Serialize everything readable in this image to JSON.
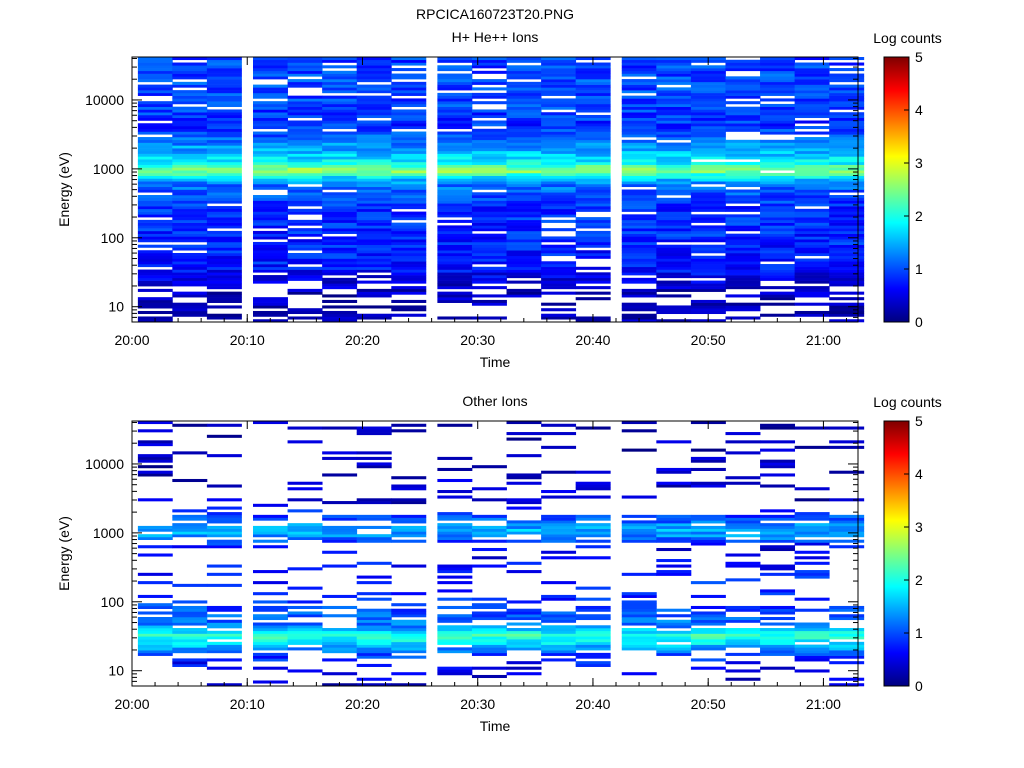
{
  "figure": {
    "title": "RPCICA160723T20.PNG"
  },
  "colors": {
    "colormap": [
      "#00007f",
      "#0000ff",
      "#007fff",
      "#00ffff",
      "#7fff7f",
      "#ffff00",
      "#ff7f00",
      "#ff0000",
      "#7f0000"
    ],
    "background": "#ffffff"
  },
  "chart_data": [
    {
      "type": "heatmap",
      "title": "H+ He++ Ions",
      "xlabel": "Time",
      "ylabel": "Energy (eV)",
      "y_scale": "log",
      "ylim": [
        6,
        42000
      ],
      "x_range": [
        "20:00",
        "21:03"
      ],
      "x_ticks": [
        "20:00",
        "20:10",
        "20:20",
        "20:30",
        "20:40",
        "20:50",
        "21:00"
      ],
      "y_ticks": [
        "10",
        "100",
        "1000",
        "10000"
      ],
      "colorbar": {
        "label": "Log counts",
        "range": [
          0,
          5
        ],
        "ticks": [
          "0",
          "1",
          "2",
          "3",
          "4",
          "5"
        ]
      },
      "time_bins": [
        "20:02",
        "20:05",
        "20:08",
        "20:12",
        "20:15",
        "20:18",
        "20:21",
        "20:24",
        "20:28",
        "20:31",
        "20:34",
        "20:37",
        "20:40",
        "20:44",
        "20:47",
        "20:50",
        "20:53",
        "20:56",
        "20:59",
        "21:02"
      ],
      "profile": [
        {
          "energy": 40000,
          "log_counts": 0.9
        },
        {
          "energy": 20000,
          "log_counts": 1.0
        },
        {
          "energy": 10000,
          "log_counts": 0.95
        },
        {
          "energy": 4000,
          "log_counts": 0.85
        },
        {
          "energy": 2000,
          "log_counts": 1.4
        },
        {
          "energy": 1200,
          "log_counts": 1.9
        },
        {
          "energy": 950,
          "log_counts": 2.7
        },
        {
          "energy": 800,
          "log_counts": 1.9
        },
        {
          "energy": 600,
          "log_counts": 1.2
        },
        {
          "energy": 300,
          "log_counts": 0.85
        },
        {
          "energy": 100,
          "log_counts": 0.8
        },
        {
          "energy": 40,
          "log_counts": 0.75
        },
        {
          "energy": 20,
          "log_counts": 0.35
        },
        {
          "energy": 10,
          "log_counts": 0.2
        },
        {
          "energy": 6,
          "log_counts": 0.2
        }
      ]
    },
    {
      "type": "heatmap",
      "title": "Other Ions",
      "xlabel": "Time",
      "ylabel": "Energy (eV)",
      "y_scale": "log",
      "ylim": [
        6,
        42000
      ],
      "x_range": [
        "20:00",
        "21:03"
      ],
      "x_ticks": [
        "20:00",
        "20:10",
        "20:20",
        "20:30",
        "20:40",
        "20:50",
        "21:00"
      ],
      "y_ticks": [
        "10",
        "100",
        "1000",
        "10000"
      ],
      "colorbar": {
        "label": "Log counts",
        "range": [
          0,
          5
        ],
        "ticks": [
          "0",
          "1",
          "2",
          "3",
          "4",
          "5"
        ]
      },
      "time_bins": [
        "20:02",
        "20:05",
        "20:08",
        "20:12",
        "20:15",
        "20:18",
        "20:21",
        "20:24",
        "20:28",
        "20:31",
        "20:34",
        "20:37",
        "20:40",
        "20:44",
        "20:47",
        "20:50",
        "20:53",
        "20:56",
        "20:59",
        "21:02"
      ],
      "profile": [
        {
          "energy": 30000,
          "log_counts": 0.3
        },
        {
          "energy": 10000,
          "log_counts": 0.3
        },
        {
          "energy": 3000,
          "log_counts": 0.3
        },
        {
          "energy": 1100,
          "log_counts": 1.5
        },
        {
          "energy": 900,
          "log_counts": 1.3
        },
        {
          "energy": 600,
          "log_counts": 0.5
        },
        {
          "energy": 300,
          "log_counts": 0.7
        },
        {
          "energy": 100,
          "log_counts": 0.85
        },
        {
          "energy": 45,
          "log_counts": 1.2
        },
        {
          "energy": 33,
          "log_counts": 2.1
        },
        {
          "energy": 26,
          "log_counts": 1.8
        },
        {
          "energy": 18,
          "log_counts": 1.0
        },
        {
          "energy": 12,
          "log_counts": 0.6
        },
        {
          "energy": 6,
          "log_counts": 0.35
        }
      ]
    }
  ]
}
